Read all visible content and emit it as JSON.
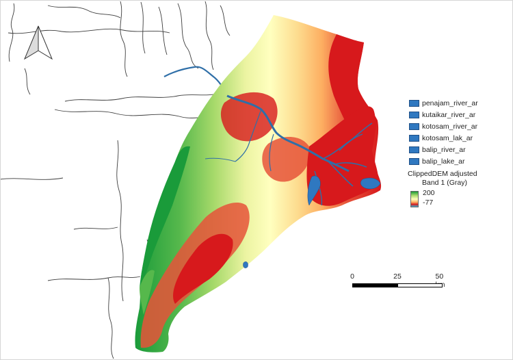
{
  "colors": {
    "river": "#2f6fa8",
    "lowland": "#1a9b3a",
    "midland": "#a6d96a",
    "plateau": "#ffffbf",
    "hill": "#fdae61",
    "highland": "#d7191c",
    "boundary": "#3b3b3b"
  },
  "north_arrow": {
    "icon": "north-arrow-icon"
  },
  "legend": {
    "items": [
      {
        "label": "penajam_river_ar"
      },
      {
        "label": "kutaikar_river_ar"
      },
      {
        "label": "kotosam_river_ar"
      },
      {
        "label": "kotosam_lak_ar"
      },
      {
        "label": "balip_river_ar"
      },
      {
        "label": "balip_lake_ar"
      }
    ],
    "raster_title": "ClippedDEM adjusted",
    "raster_band": "Band 1 (Gray)",
    "raster_max": "200",
    "raster_min": "-77"
  },
  "scalebar": {
    "ticks": [
      "0",
      "25",
      "50 km"
    ]
  }
}
